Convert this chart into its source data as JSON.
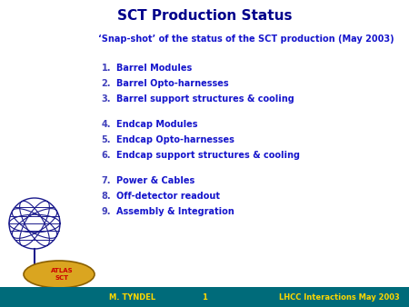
{
  "title": "SCT Production Status",
  "subtitle": "‘Snap-shot’ of the status of the SCT production (May 2003)",
  "items": [
    {
      "num": "1.",
      "text": "Barrel Modules"
    },
    {
      "num": "2.",
      "text": "Barrel Opto-harnesses"
    },
    {
      "num": "3.",
      "text": "Barrel support structures & cooling"
    },
    {
      "num": "4.",
      "text": "Endcap Modules"
    },
    {
      "num": "5.",
      "text": "Endcap Opto-harnesses"
    },
    {
      "num": "6.",
      "text": "Endcap support structures & cooling"
    },
    {
      "num": "7.",
      "text": "Power & Cables"
    },
    {
      "num": "8.",
      "text": "Off-detector readout"
    },
    {
      "num": "9.",
      "text": "Assembly & Integration"
    }
  ],
  "group_breaks": [
    3,
    6
  ],
  "footer_bg": "#006B7A",
  "footer_left": "M. TYNDEL",
  "footer_center": "1",
  "footer_right": "LHCC Interactions May 2003",
  "footer_text_color": "#FFD700",
  "title_color": "#00008B",
  "text_color": "#1515CC",
  "num_color": "#4040BB",
  "subtitle_color": "#1515CC",
  "bg_color": "#FFFFFF",
  "atlas_oval_color": "#DAA520",
  "atlas_oval_edge": "#8B6000",
  "atlas_text_color": "#CC0000",
  "globe_color": "#1A1A8C",
  "figure_width": 4.5,
  "figure_height": 3.38,
  "dpi": 100
}
